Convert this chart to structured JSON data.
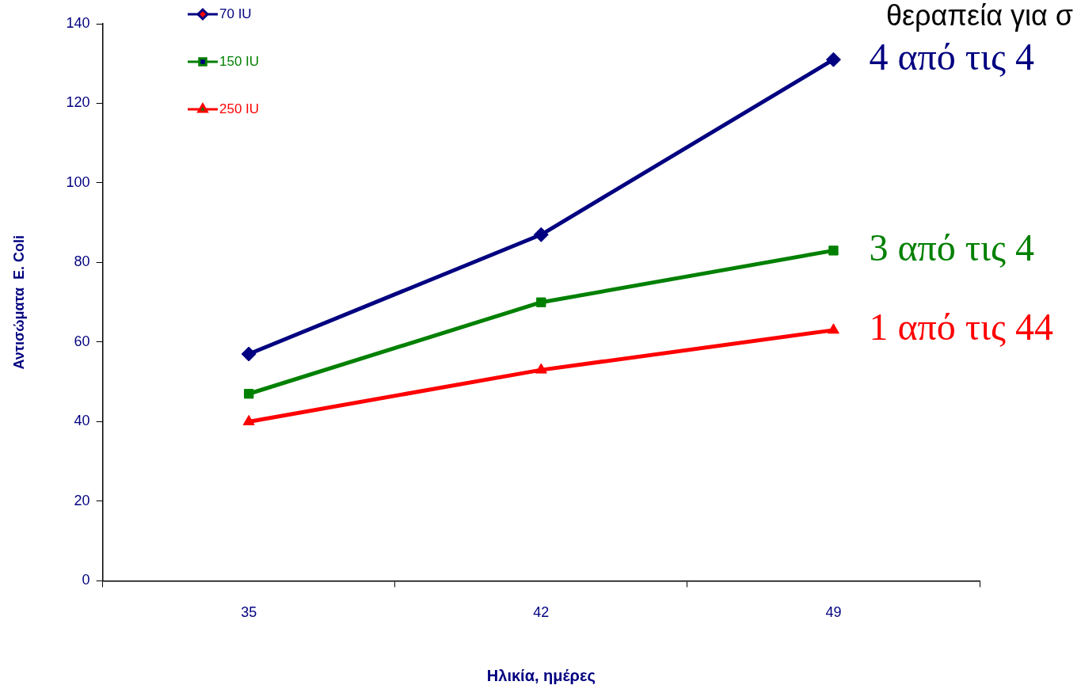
{
  "chart_data": {
    "type": "line",
    "categories": [
      "35",
      "42",
      "49"
    ],
    "series": [
      {
        "name": "70 IU",
        "color": "#000080",
        "marker": "diamond",
        "values": [
          57,
          87,
          131
        ]
      },
      {
        "name": "150 IU",
        "color": "#008000",
        "marker": "square",
        "values": [
          47,
          70,
          83
        ]
      },
      {
        "name": "250 IU",
        "color": "#ff0000",
        "marker": "triangle",
        "values": [
          40,
          53,
          63
        ]
      }
    ],
    "xlabel": "Ηλικία, ημέρες",
    "ylabel": "Αντισώματα  E. Coli",
    "ylim": [
      0,
      140
    ],
    "yticks": [
      0,
      20,
      40,
      60,
      80,
      100,
      120,
      140
    ],
    "grid": false,
    "legend": "top left",
    "annotations": [
      "θεραπεία για σ",
      {
        "text": "4 από τις 4",
        "x": "49",
        "y": 131
      },
      {
        "text": "3 από τις 4",
        "x": "49",
        "y": 83
      },
      {
        "text": "1 από τις 44",
        "x": "49",
        "y": 63
      }
    ]
  }
}
